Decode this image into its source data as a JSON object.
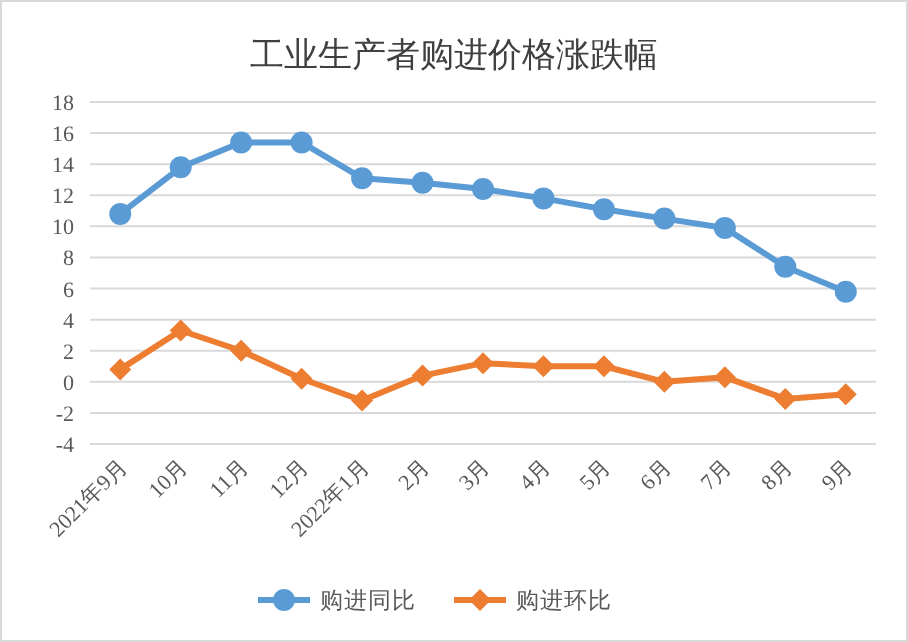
{
  "chart_data": {
    "type": "line",
    "title": "工业生产者购进价格涨跌幅",
    "categories": [
      "2021年9月",
      "10月",
      "11月",
      "12月",
      "2022年1月",
      "2月",
      "3月",
      "4月",
      "5月",
      "6月",
      "7月",
      "8月",
      "9月"
    ],
    "series": [
      {
        "name": "购进同比",
        "color": "#5b9bd5",
        "marker": "circle",
        "values": [
          10.8,
          13.8,
          15.4,
          15.4,
          13.1,
          12.8,
          12.4,
          11.8,
          11.1,
          10.5,
          9.9,
          7.4,
          5.8
        ]
      },
      {
        "name": "购进环比",
        "color": "#ed7d31",
        "marker": "diamond",
        "values": [
          0.8,
          3.3,
          2.0,
          0.2,
          -1.2,
          0.4,
          1.2,
          1.0,
          1.0,
          0.0,
          0.3,
          -1.1,
          -0.8
        ]
      }
    ],
    "ylim": [
      -4,
      18
    ],
    "yticks": [
      -4,
      -2,
      0,
      2,
      4,
      6,
      8,
      10,
      12,
      14,
      16,
      18
    ],
    "grid": "y",
    "legend": "bottom"
  }
}
